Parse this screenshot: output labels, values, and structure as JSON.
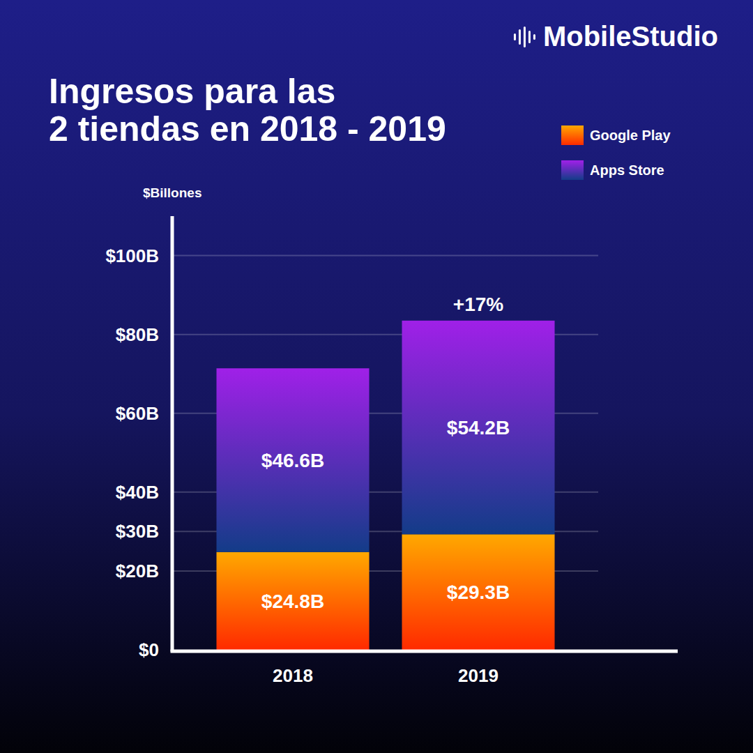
{
  "brand": "MobileStudio",
  "chart_data": {
    "type": "bar",
    "title": "Ingresos para las 2 tiendas en 2018 - 2019",
    "y_label": "$Billones",
    "categories": [
      "2018",
      "2019"
    ],
    "series": [
      {
        "name": "Google Play",
        "color": "#ffa800",
        "values": [
          24.8,
          29.3
        ],
        "value_labels": [
          "$24.8B",
          "$29.3B"
        ]
      },
      {
        "name": "Apps Store",
        "color": "#a020e8",
        "values": [
          46.6,
          54.2
        ],
        "value_labels": [
          "$46.6B",
          "$54.2B"
        ]
      }
    ],
    "stacked": true,
    "data_labels": true,
    "ylim": [
      0,
      110
    ],
    "yticks": [
      {
        "value": 0,
        "label": "$0"
      },
      {
        "value": 20,
        "label": "$20B"
      },
      {
        "value": 30,
        "label": "$30B"
      },
      {
        "value": 40,
        "label": "$40B"
      },
      {
        "value": 60,
        "label": "$60B"
      },
      {
        "value": 80,
        "label": "$80B"
      },
      {
        "value": 100,
        "label": "$100B"
      }
    ],
    "grid": true,
    "legend": "upper right",
    "annotations": [
      {
        "text": "+17%",
        "x": "2019"
      }
    ]
  }
}
